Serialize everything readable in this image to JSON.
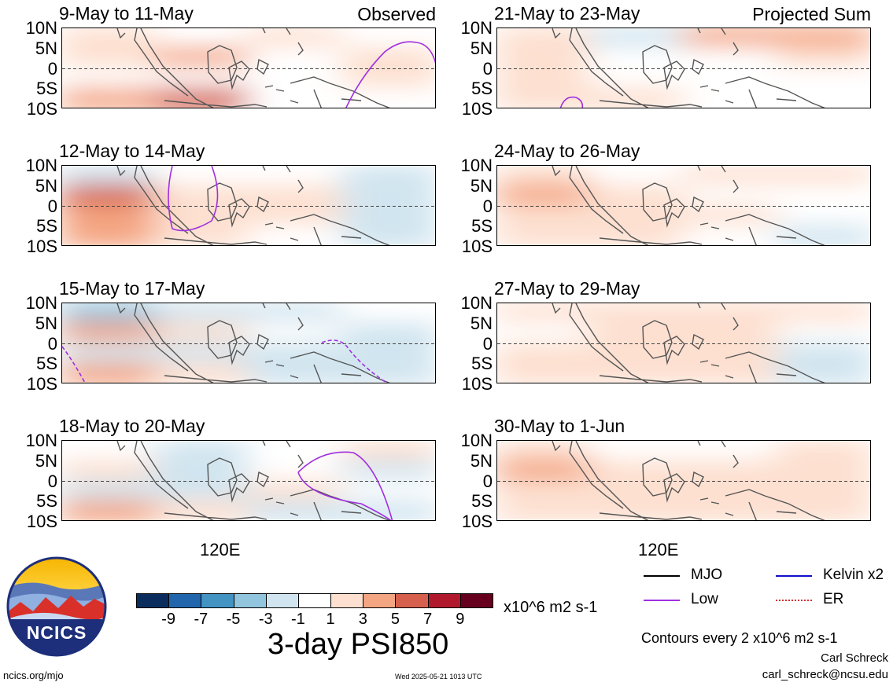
{
  "panels": [
    {
      "title": "9-May to 11-May",
      "corner": "Observed",
      "low": "solid",
      "field": [
        2,
        0,
        1,
        0,
        2,
        3,
        0,
        1,
        -1,
        -1,
        0,
        1,
        4,
        6,
        0,
        0
      ]
    },
    {
      "title": "12-May to 14-May",
      "corner": "",
      "low": "solid",
      "field": [
        -2,
        -1,
        -1,
        -2,
        5,
        1,
        2,
        -2,
        4,
        2,
        2,
        -3,
        3,
        1,
        -1,
        -3
      ]
    },
    {
      "title": "15-May to 17-May",
      "corner": "",
      "low": "dashed",
      "field": [
        -5,
        -3,
        -2,
        -1,
        4,
        1,
        -1,
        -2,
        -2,
        -3,
        -3,
        -3,
        3,
        2,
        -2,
        -3
      ]
    },
    {
      "title": "18-May to 20-May",
      "corner": "",
      "low": "solid",
      "field": [
        -1,
        -2,
        -1,
        1,
        1,
        -3,
        -1,
        -2,
        -2,
        -2,
        1,
        0,
        3,
        1,
        -2,
        -2
      ]
    },
    {
      "title": "21-May to 23-May",
      "corner": "Projected Sum",
      "low": "solid",
      "field": [
        1,
        -2,
        3,
        4,
        1,
        -1,
        0,
        1,
        2,
        0,
        -1,
        -1,
        1,
        1,
        0,
        -1
      ]
    },
    {
      "title": "24-May to 26-May",
      "corner": "",
      "low": "none",
      "field": [
        2,
        0,
        1,
        2,
        3,
        1,
        0,
        0,
        2,
        1,
        1,
        -1,
        1,
        2,
        0,
        -2
      ]
    },
    {
      "title": "27-May to 29-May",
      "corner": "",
      "low": "none",
      "field": [
        1,
        1,
        1,
        2,
        0,
        2,
        1,
        0,
        2,
        2,
        1,
        -2,
        1,
        2,
        1,
        -2
      ]
    },
    {
      "title": "30-May to 1-Jun",
      "corner": "",
      "low": "none",
      "field": [
        1,
        0,
        -1,
        2,
        3,
        1,
        1,
        2,
        2,
        2,
        1,
        1,
        1,
        2,
        2,
        2
      ]
    }
  ],
  "ylabels": [
    "10N",
    "5N",
    "0",
    "5S",
    "10S"
  ],
  "xlabel": "120E",
  "colorbar": {
    "colors": [
      "#0a2d5e",
      "#2166ac",
      "#4393c3",
      "#92c5de",
      "#d1e5f0",
      "#ffffff",
      "#fde0d0",
      "#f4a582",
      "#d6604d",
      "#b2182b",
      "#67001f"
    ],
    "ticks": [
      "-9",
      "-7",
      "-5",
      "-3",
      "-1",
      "1",
      "3",
      "5",
      "7",
      "9"
    ],
    "units": "x10^6 m2 s-1"
  },
  "title": "3-day PSI850",
  "legend": [
    {
      "label": "MJO",
      "color": "#000000",
      "style": "solid"
    },
    {
      "label": "Kelvin x2",
      "color": "#1010cc",
      "style": "solid"
    },
    {
      "label": "Low",
      "color": "#a030e0",
      "style": "solid"
    },
    {
      "label": "ER",
      "color": "#d03030",
      "style": "dotted"
    }
  ],
  "contours_note": "Contours every 2 x10^6 m2 s-1",
  "author": "Carl Schreck",
  "email": "carl_schreck@ncsu.edu",
  "site": "ncics.org/mjo",
  "timestamp": "Wed 2025-05-21 1013 UTC",
  "logo_text": "NCICS"
}
